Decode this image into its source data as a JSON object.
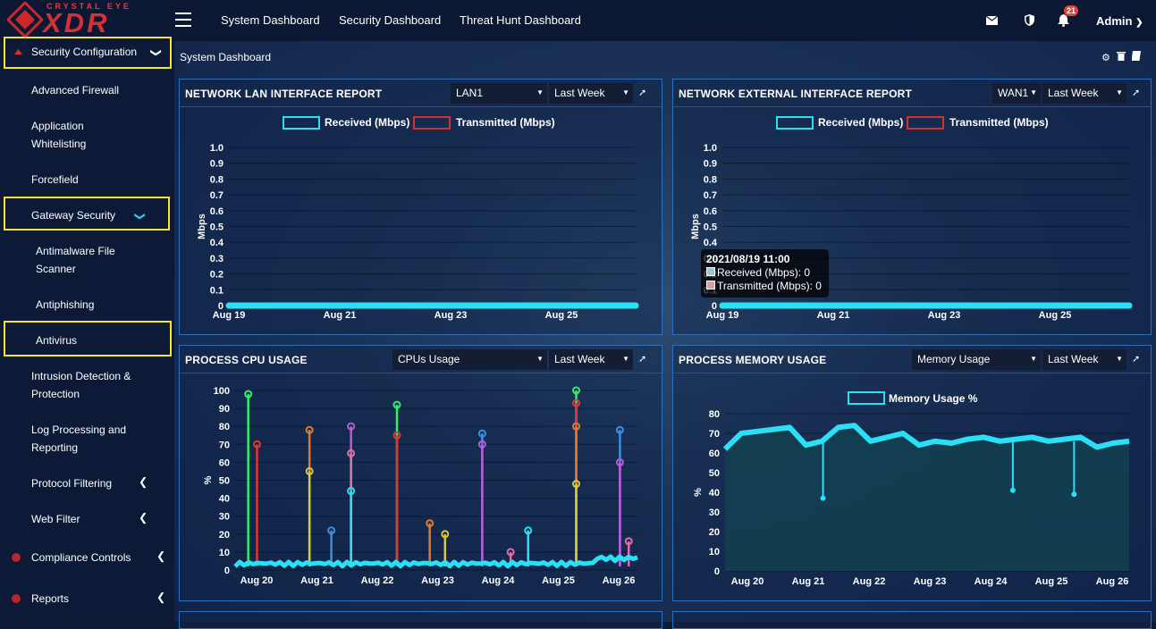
{
  "brand": {
    "top": "CRYSTAL EYE",
    "main": "XDR"
  },
  "topnav": [
    "System Dashboard",
    "Security Dashboard",
    "Threat Hunt Dashboard"
  ],
  "notifications_count": "21",
  "user": "Admin",
  "sidebar": {
    "security_configuration": "Security Configuration",
    "advanced_firewall": "Advanced Firewall",
    "application_whitelisting": [
      "Application",
      "Whitelisting"
    ],
    "forcefield": "Forcefield",
    "gateway_security": "Gateway Security",
    "antimalware": [
      "Antimalware File",
      "Scanner"
    ],
    "antiphishing": "Antiphishing",
    "antivirus": "Antivirus",
    "intrusion": [
      "Intrusion Detection &",
      "Protection"
    ],
    "log_processing": [
      "Log Processing and",
      "Reporting"
    ],
    "protocol_filtering": "Protocol Filtering",
    "web_filter": "Web Filter",
    "compliance_controls": "Compliance Controls",
    "reports": "Reports"
  },
  "page_title": "System Dashboard",
  "colors": {
    "received": "#2be0f5",
    "transmitted": "#d62f2f",
    "highlight": "#f5e52c",
    "panel_border": "#2d6fbc"
  },
  "panels": {
    "lan": {
      "title": "NETWORK LAN INTERFACE REPORT",
      "select1": "LAN1",
      "select2": "Last Week"
    },
    "wan": {
      "title": "NETWORK EXTERNAL INTERFACE REPORT",
      "select1": "WAN1",
      "select2": "Last Week"
    },
    "cpu": {
      "title": "PROCESS CPU USAGE",
      "select1": "CPUs Usage",
      "select2": "Last Week"
    },
    "mem": {
      "title": "PROCESS MEMORY USAGE",
      "select1": "Memory Usage",
      "select2": "Last Week"
    }
  },
  "tooltip": {
    "date": "2021/08/19 11:00",
    "received": "Received (Mbps): 0",
    "transmitted": "Transmitted (Mbps): 0"
  },
  "chart_data": [
    {
      "type": "line",
      "ylabel": "Mbps",
      "ylim": [
        0,
        1.0
      ],
      "yticks": [
        "1.0",
        "0.9",
        "0.8",
        "0.7",
        "0.6",
        "0.5",
        "0.4",
        "0.3",
        "0.2",
        "0.1",
        "0"
      ],
      "xticks": [
        "Aug 19",
        "Aug 21",
        "Aug 23",
        "Aug 25"
      ],
      "series": [
        {
          "name": "Received (Mbps)",
          "values": [
            0,
            0,
            0,
            0,
            0,
            0,
            0
          ]
        },
        {
          "name": "Transmitted (Mbps)",
          "values": [
            0,
            0,
            0,
            0,
            0,
            0,
            0
          ]
        }
      ]
    },
    {
      "type": "line",
      "ylabel": "Mbps",
      "ylim": [
        0,
        1.0
      ],
      "yticks": [
        "1.0",
        "0.9",
        "0.8",
        "0.7",
        "0.6",
        "0.5",
        "0.4",
        "0.3",
        "0.2",
        "0.1",
        "0"
      ],
      "xticks": [
        "Aug 19",
        "Aug 21",
        "Aug 23",
        "Aug 25"
      ],
      "series": [
        {
          "name": "Received (Mbps)",
          "values": [
            0,
            0,
            0,
            0,
            0,
            0,
            0
          ]
        },
        {
          "name": "Transmitted (Mbps)",
          "values": [
            0,
            0,
            0,
            0,
            0,
            0,
            0
          ]
        }
      ]
    },
    {
      "type": "line",
      "ylabel": "%",
      "ylim": [
        0,
        100
      ],
      "yticks": [
        "100",
        "90",
        "80",
        "70",
        "60",
        "50",
        "40",
        "30",
        "20",
        "10",
        "0"
      ],
      "xticks": [
        "Aug 20",
        "Aug 21",
        "Aug 22",
        "Aug 23",
        "Aug 24",
        "Aug 25",
        "Aug 26"
      ],
      "spikes": [
        [
          0.3,
          98
        ],
        [
          0.5,
          70
        ],
        [
          1.7,
          78
        ],
        [
          1.7,
          55
        ],
        [
          2.2,
          22
        ],
        [
          2.65,
          80
        ],
        [
          2.65,
          65
        ],
        [
          2.65,
          44
        ],
        [
          3.7,
          92
        ],
        [
          3.7,
          75
        ],
        [
          4.45,
          26
        ],
        [
          4.8,
          20
        ],
        [
          5.65,
          76
        ],
        [
          5.65,
          70
        ],
        [
          6.3,
          10
        ],
        [
          6.7,
          22
        ],
        [
          7.8,
          100
        ],
        [
          7.8,
          93
        ],
        [
          7.8,
          80
        ],
        [
          7.8,
          48
        ],
        [
          8.8,
          78
        ],
        [
          8.8,
          60
        ],
        [
          9.0,
          16
        ]
      ]
    },
    {
      "type": "area",
      "ylabel": "%",
      "ylim": [
        0,
        80
      ],
      "yticks": [
        "80",
        "70",
        "60",
        "50",
        "40",
        "30",
        "20",
        "10",
        "0"
      ],
      "xticks": [
        "Aug 20",
        "Aug 21",
        "Aug 22",
        "Aug 23",
        "Aug 24",
        "Aug 25",
        "Aug 26"
      ],
      "series": [
        {
          "name": "Memory Usage %",
          "values": [
            62,
            70,
            71,
            72,
            73,
            64,
            66,
            73,
            74,
            66,
            68,
            70,
            64,
            66,
            65,
            67,
            68,
            66,
            67,
            68,
            66,
            67,
            68,
            63,
            65,
            66
          ]
        }
      ],
      "dips": [
        [
          1.6,
          37
        ],
        [
          4.7,
          41
        ],
        [
          5.7,
          39
        ]
      ]
    }
  ]
}
